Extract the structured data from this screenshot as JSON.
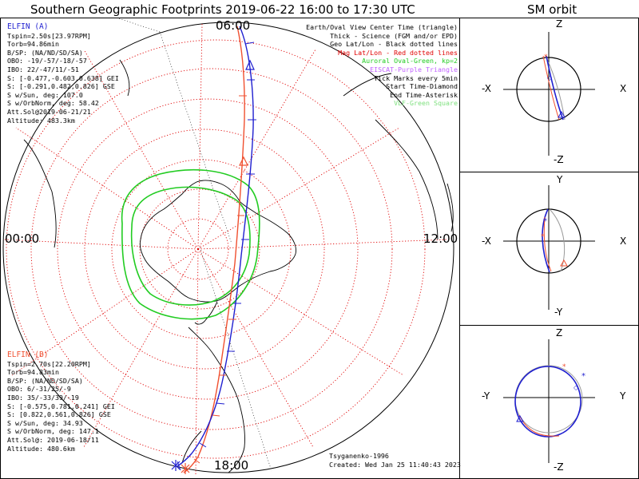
{
  "header": {
    "title": "Southern Geographic Footprints 2019-06-22 16:00 to 17:30 UTC",
    "orbit_title": "SM orbit"
  },
  "clock_labels": {
    "top": "06:00",
    "left": "00:00",
    "right": "12:00",
    "bottom": "18:00"
  },
  "elfin_a": {
    "name": "ELFIN (A)",
    "color": "#1f1fd0",
    "lines": [
      "Tspin=2.50s[23.97RPM]",
      "Torb=94.86min",
      "B/SP: (NA/ND/SD/SA)",
      "OBO: -19/-57/-18/-57",
      "IBO: 22/-47/11/-51",
      "S: [-0.477,-0.603,0.638] GEI",
      "S: [-0.291,0.482,0.826] GSE",
      "S w/Sun, deg: 107.0",
      "S w/OrbNorm, deg: 58.42",
      "Att.Sol@2019-06-21/21",
      "Altitude: 483.3km"
    ]
  },
  "elfin_b": {
    "name": "ELFIN (B)",
    "color": "#f05030",
    "lines": [
      "Tspin=2.70s[22.20RPM]",
      "Torb=94.83min",
      "B/SP: (NA/ND/SD/SA)",
      "OBO: 6/-31/25/-9",
      "IBO: 35/-33/39/-19",
      "S: [-0.575,0.781,0.241] GEI",
      "S: [0.822,0.561,0.826] GSE",
      "S w/Sun, deg: 34.93",
      "S w/OrbNorm, deg: 147.1",
      "Att.Sol@: 2019-06-18/11",
      "Altitude: 480.6km"
    ]
  },
  "legend": [
    {
      "text": "Earth/Oval View Center Time (triangle)",
      "color": "#000000"
    },
    {
      "text": "Thick - Science (FGM and/or EPD)",
      "color": "#000000"
    },
    {
      "text": "Geo Lat/Lon - Black dotted lines",
      "color": "#000000"
    },
    {
      "text": "Mag Lat/Lon - Red dotted lines",
      "color": "#e00000"
    },
    {
      "text": "Auroral Oval-Green, kp=2",
      "color": "#22cc22"
    },
    {
      "text": "EISCAT-Purple Triangle",
      "color": "#c060ff"
    },
    {
      "text": "Tick Marks every 5min",
      "color": "#000000"
    },
    {
      "text": "Start Time-Diamond",
      "color": "#000000"
    },
    {
      "text": "End Time-Asterisk",
      "color": "#000000"
    },
    {
      "text": "VLF-Green Square",
      "color": "#7ee07e"
    }
  ],
  "footer": {
    "model": "Tsyganenko-1996",
    "created": "Created: Wed Jan 25 11:40:43 2023"
  },
  "orbit_panels": [
    {
      "top": "Z",
      "bottom": "-Z",
      "left": "-X",
      "right": "X"
    },
    {
      "top": "Y",
      "bottom": "-Y",
      "left": "-X",
      "right": "X"
    },
    {
      "top": "Z",
      "bottom": "-Z",
      "left": "-Y",
      "right": "Y"
    }
  ],
  "colors": {
    "sat_a": "#1f1fd0",
    "sat_b": "#f05030",
    "mag_grid": "#e00000",
    "oval": "#22cc22",
    "geo_grid": "#000000"
  }
}
